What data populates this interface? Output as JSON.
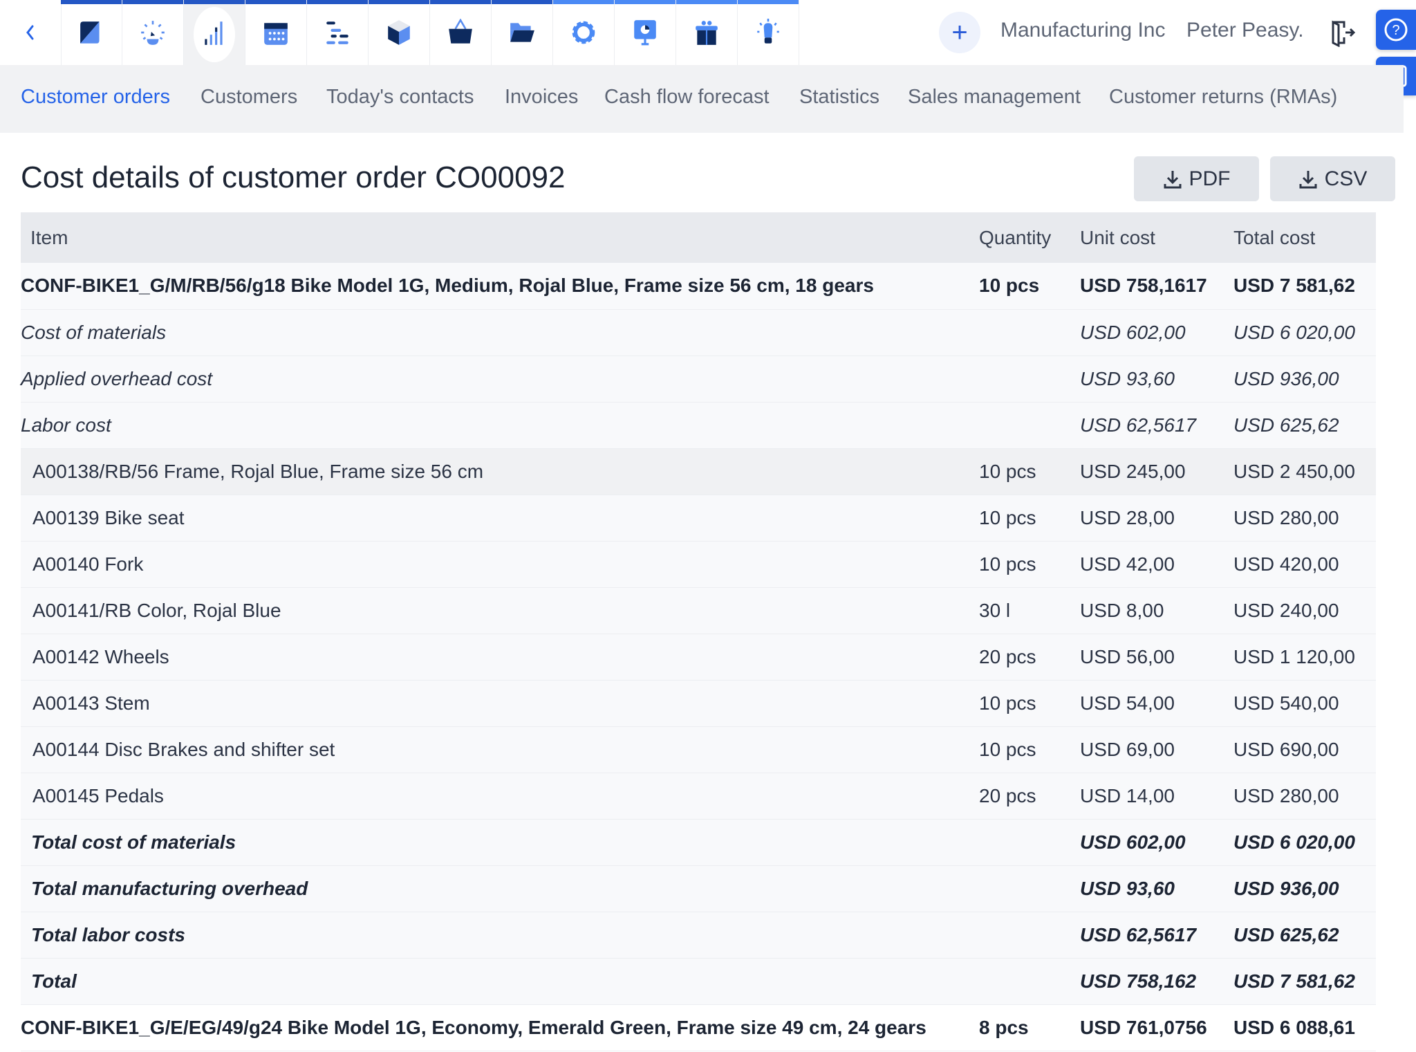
{
  "topbar": {
    "back_icon": "chevron-left-icon",
    "modules": [
      {
        "icon": "dashboard-icon",
        "strip": "#2457c5"
      },
      {
        "icon": "speedometer-icon",
        "strip": "#2457c5"
      },
      {
        "icon": "bar-chart-icon",
        "strip": "#2457c5",
        "active": true
      },
      {
        "icon": "calendar-icon",
        "strip": "#2457c5"
      },
      {
        "icon": "gantt-icon",
        "strip": "#2457c5"
      },
      {
        "icon": "box-icon",
        "strip": "#2457c5"
      },
      {
        "icon": "basket-icon",
        "strip": "#2457c5"
      },
      {
        "icon": "folder-icon",
        "strip": "#2457c5"
      },
      {
        "icon": "gear-icon",
        "strip": "#4b8af5"
      },
      {
        "icon": "presentation-icon",
        "strip": "#4b8af5"
      },
      {
        "icon": "gift-icon",
        "strip": "#4b8af5"
      },
      {
        "icon": "lightbulb-icon",
        "strip": "#4b8af5"
      }
    ],
    "plus": "+",
    "company": "Manufacturing Inc",
    "user": "Peter Peasy."
  },
  "tabs": [
    "Customer orders",
    "Customers",
    "Today's contacts",
    "Invoices",
    "Cash flow forecast",
    "Statistics",
    "Sales management",
    "Customer returns (RMAs)"
  ],
  "page": {
    "title": "Cost details of customer order CO00092",
    "pdf": "PDF",
    "csv": "CSV"
  },
  "table": {
    "headers": [
      "Item",
      "Quantity",
      "Unit cost",
      "Total cost"
    ],
    "rows": [
      {
        "type": "main",
        "cells": [
          "CONF-BIKE1_G/M/RB/56/g18 Bike Model 1G, Medium, Rojal Blue, Frame size 56 cm, 18 gears",
          "10 pcs",
          "USD 758,1617",
          "USD 7 581,62"
        ]
      },
      {
        "type": "sub",
        "cells": [
          "Cost of materials",
          "",
          "USD 602,00",
          "USD 6 020,00"
        ]
      },
      {
        "type": "sub",
        "cells": [
          "Applied overhead cost",
          "",
          "USD 93,60",
          "USD 936,00"
        ]
      },
      {
        "type": "sub",
        "cells": [
          "Labor cost",
          "",
          "USD 62,5617",
          "USD 625,62"
        ]
      },
      {
        "type": "comp hl",
        "cells": [
          "A00138/RB/56 Frame, Rojal Blue, Frame size 56 cm",
          "10 pcs",
          "USD 245,00",
          "USD 2 450,00"
        ]
      },
      {
        "type": "comp",
        "cells": [
          "A00139 Bike seat",
          "10 pcs",
          "USD 28,00",
          "USD 280,00"
        ]
      },
      {
        "type": "comp",
        "cells": [
          "A00140 Fork",
          "10 pcs",
          "USD 42,00",
          "USD 420,00"
        ]
      },
      {
        "type": "comp",
        "cells": [
          "A00141/RB Color, Rojal Blue",
          "30 l",
          "USD 8,00",
          "USD 240,00"
        ]
      },
      {
        "type": "comp",
        "cells": [
          "A00142 Wheels",
          "20 pcs",
          "USD 56,00",
          "USD 1 120,00"
        ]
      },
      {
        "type": "comp",
        "cells": [
          "A00143 Stem",
          "10 pcs",
          "USD 54,00",
          "USD 540,00"
        ]
      },
      {
        "type": "comp",
        "cells": [
          "A00144 Disc Brakes and shifter set",
          "10 pcs",
          "USD 69,00",
          "USD 690,00"
        ]
      },
      {
        "type": "comp",
        "cells": [
          "A00145 Pedals",
          "20 pcs",
          "USD 14,00",
          "USD 280,00"
        ]
      },
      {
        "type": "tot",
        "cells": [
          "Total cost of materials",
          "",
          "USD 602,00",
          "USD 6 020,00"
        ]
      },
      {
        "type": "tot",
        "cells": [
          "Total manufacturing overhead",
          "",
          "USD 93,60",
          "USD 936,00"
        ]
      },
      {
        "type": "tot",
        "cells": [
          "Total labor costs",
          "",
          "USD 62,5617",
          "USD 625,62"
        ]
      },
      {
        "type": "tot",
        "cells": [
          "Total",
          "",
          "USD 758,162",
          "USD 7 581,62"
        ]
      },
      {
        "type": "main last",
        "cells": [
          "CONF-BIKE1_G/E/EG/49/g24 Bike Model 1G, Economy, Emerald Green, Frame size 49 cm, 24 gears",
          "8 pcs",
          "USD 761,0756",
          "USD 6 088,61"
        ]
      }
    ]
  },
  "colors": {
    "accent": "#2563e8",
    "dark": "#0d2a5e",
    "light": "#5b8ef0"
  }
}
